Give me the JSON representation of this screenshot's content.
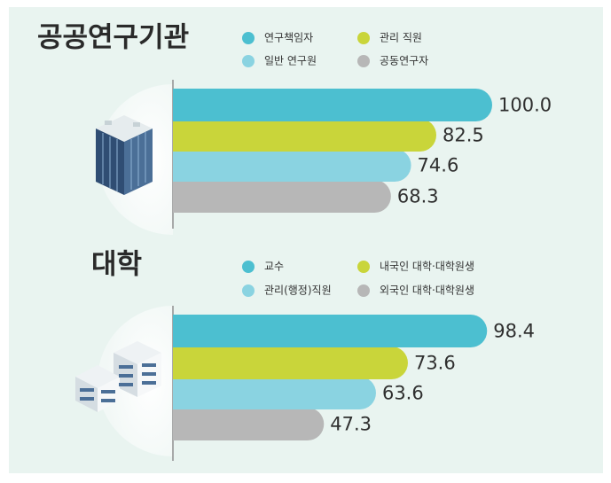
{
  "chart_data": [
    {
      "type": "bar",
      "title": "공공연구기관",
      "categories": [
        "연구책임자",
        "관리 직원",
        "일반 연구원",
        "공동연구자"
      ],
      "values": [
        100.0,
        82.5,
        74.6,
        68.3
      ],
      "value_labels": [
        "100.0",
        "82.5",
        "74.6",
        "68.3"
      ],
      "colors": [
        "#4cbfd0",
        "#c9d53a",
        "#8ad3e1",
        "#b7b7b7"
      ],
      "xlim": [
        0,
        100
      ]
    },
    {
      "type": "bar",
      "title": "대학",
      "categories": [
        "교수",
        "내국인 대학·대학원생",
        "관리(행정)직원",
        "외국인 대학·대학원생"
      ],
      "values": [
        98.4,
        73.6,
        63.6,
        47.3
      ],
      "value_labels": [
        "98.4",
        "73.6",
        "63.6",
        "47.3"
      ],
      "colors": [
        "#4cbfd0",
        "#c9d53a",
        "#8ad3e1",
        "#b7b7b7"
      ],
      "xlim": [
        0,
        100
      ]
    }
  ]
}
